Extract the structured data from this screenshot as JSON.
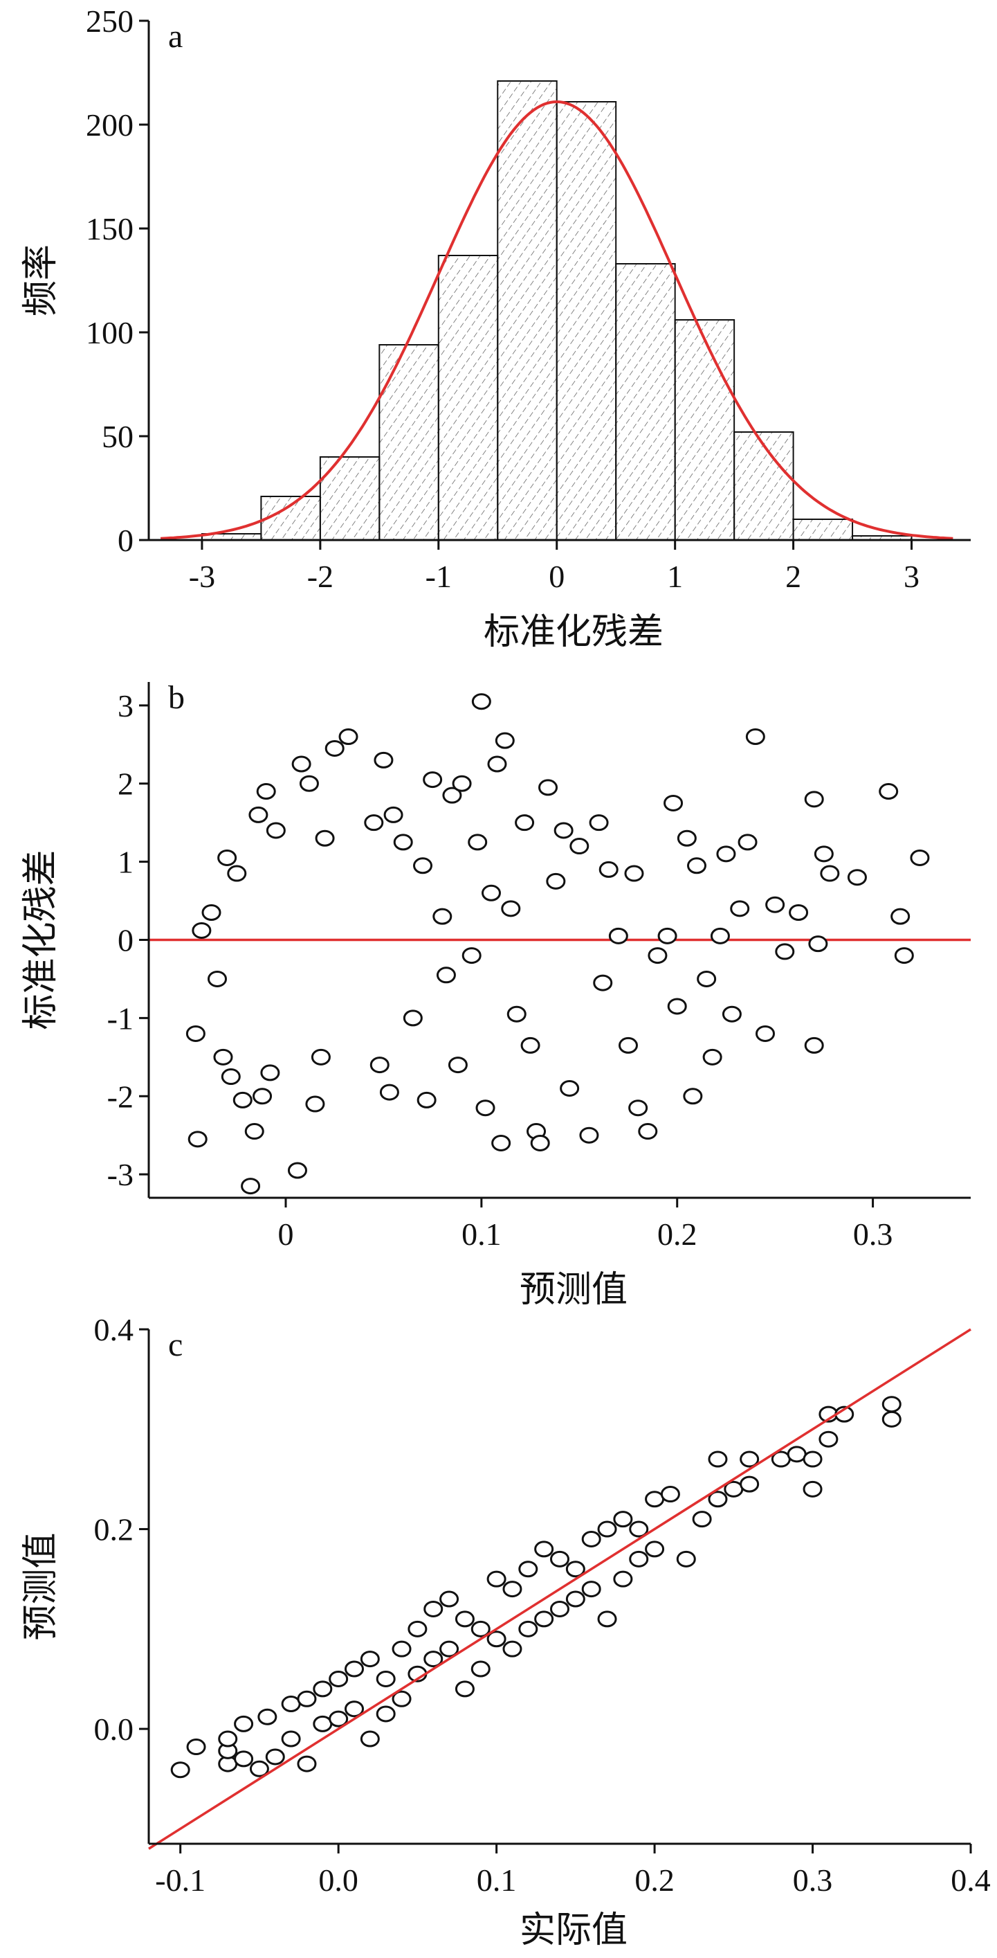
{
  "chart_data": [
    {
      "panel": "a",
      "type": "bar",
      "xlabel": "标准化残差",
      "ylabel": "频率",
      "xlim": [
        -3.45,
        3.5
      ],
      "ylim": [
        0,
        250
      ],
      "xticks": [
        -3,
        -2,
        -1,
        0,
        1,
        2,
        3
      ],
      "yticks": [
        0,
        50,
        100,
        150,
        200,
        250
      ],
      "bin_width": 0.5,
      "bins": [
        {
          "x0": -3.0,
          "count": 3
        },
        {
          "x0": -2.5,
          "count": 21
        },
        {
          "x0": -2.0,
          "count": 40
        },
        {
          "x0": -1.5,
          "count": 94
        },
        {
          "x0": -1.0,
          "count": 137
        },
        {
          "x0": -0.5,
          "count": 221
        },
        {
          "x0": 0.0,
          "count": 211
        },
        {
          "x0": 0.5,
          "count": 133
        },
        {
          "x0": 1.0,
          "count": 106
        },
        {
          "x0": 1.5,
          "count": 52
        },
        {
          "x0": 2.0,
          "count": 10
        },
        {
          "x0": 2.5,
          "count": 2
        }
      ],
      "normal_curve": {
        "mean": 0,
        "sd": 1,
        "peak": 211,
        "color": "#e03030"
      },
      "bar_pattern": "diagonal-hatch"
    },
    {
      "panel": "b",
      "type": "scatter",
      "xlabel": "预测值",
      "ylabel": "标准化残差",
      "xlim": [
        -0.07,
        0.35
      ],
      "ylim": [
        -3.3,
        3.3
      ],
      "xticks": [
        0.0,
        0.1,
        0.2,
        0.3
      ],
      "yticks": [
        -3,
        -2,
        -1,
        0,
        1,
        2,
        3
      ],
      "reference_line": {
        "y": 0,
        "color": "#e03030"
      },
      "points": [
        [
          -0.045,
          -2.55
        ],
        [
          -0.046,
          -1.2
        ],
        [
          -0.043,
          0.12
        ],
        [
          -0.038,
          0.35
        ],
        [
          -0.035,
          -0.5
        ],
        [
          -0.032,
          -1.5
        ],
        [
          -0.03,
          1.05
        ],
        [
          -0.028,
          -1.75
        ],
        [
          -0.025,
          0.85
        ],
        [
          -0.022,
          -2.05
        ],
        [
          -0.018,
          -3.15
        ],
        [
          -0.016,
          -2.45
        ],
        [
          -0.014,
          1.6
        ],
        [
          -0.012,
          -2.0
        ],
        [
          -0.01,
          1.9
        ],
        [
          -0.008,
          -1.7
        ],
        [
          -0.005,
          1.4
        ],
        [
          0.006,
          -2.95
        ],
        [
          0.008,
          2.25
        ],
        [
          0.012,
          2.0
        ],
        [
          0.015,
          -2.1
        ],
        [
          0.018,
          -1.5
        ],
        [
          0.02,
          1.3
        ],
        [
          0.025,
          2.45
        ],
        [
          0.032,
          2.6
        ],
        [
          0.045,
          1.5
        ],
        [
          0.048,
          -1.6
        ],
        [
          0.05,
          2.3
        ],
        [
          0.053,
          -1.95
        ],
        [
          0.055,
          1.6
        ],
        [
          0.06,
          1.25
        ],
        [
          0.065,
          -1.0
        ],
        [
          0.07,
          0.95
        ],
        [
          0.072,
          -2.05
        ],
        [
          0.075,
          2.05
        ],
        [
          0.08,
          0.3
        ],
        [
          0.082,
          -0.45
        ],
        [
          0.085,
          1.85
        ],
        [
          0.088,
          -1.6
        ],
        [
          0.09,
          2.0
        ],
        [
          0.095,
          -0.2
        ],
        [
          0.098,
          1.25
        ],
        [
          0.1,
          3.05
        ],
        [
          0.102,
          -2.15
        ],
        [
          0.105,
          0.6
        ],
        [
          0.108,
          2.25
        ],
        [
          0.11,
          -2.6
        ],
        [
          0.112,
          2.55
        ],
        [
          0.115,
          0.4
        ],
        [
          0.118,
          -0.95
        ],
        [
          0.122,
          1.5
        ],
        [
          0.125,
          -1.35
        ],
        [
          0.128,
          -2.45
        ],
        [
          0.13,
          -2.6
        ],
        [
          0.134,
          1.95
        ],
        [
          0.138,
          0.75
        ],
        [
          0.142,
          1.4
        ],
        [
          0.145,
          -1.9
        ],
        [
          0.15,
          1.2
        ],
        [
          0.155,
          -2.5
        ],
        [
          0.16,
          1.5
        ],
        [
          0.162,
          -0.55
        ],
        [
          0.165,
          0.9
        ],
        [
          0.17,
          0.05
        ],
        [
          0.175,
          -1.35
        ],
        [
          0.178,
          0.85
        ],
        [
          0.18,
          -2.15
        ],
        [
          0.185,
          -2.45
        ],
        [
          0.19,
          -0.2
        ],
        [
          0.195,
          0.05
        ],
        [
          0.198,
          1.75
        ],
        [
          0.2,
          -0.85
        ],
        [
          0.205,
          1.3
        ],
        [
          0.208,
          -2.0
        ],
        [
          0.21,
          0.95
        ],
        [
          0.215,
          -0.5
        ],
        [
          0.218,
          -1.5
        ],
        [
          0.222,
          0.05
        ],
        [
          0.225,
          1.1
        ],
        [
          0.228,
          -0.95
        ],
        [
          0.232,
          0.4
        ],
        [
          0.236,
          1.25
        ],
        [
          0.24,
          2.6
        ],
        [
          0.245,
          -1.2
        ],
        [
          0.25,
          0.45
        ],
        [
          0.255,
          -0.15
        ],
        [
          0.262,
          0.35
        ],
        [
          0.27,
          1.8
        ],
        [
          0.272,
          -0.05
        ],
        [
          0.275,
          1.1
        ],
        [
          0.278,
          0.85
        ],
        [
          0.27,
          -1.35
        ],
        [
          0.292,
          0.8
        ],
        [
          0.308,
          1.9
        ],
        [
          0.314,
          0.3
        ],
        [
          0.316,
          -0.2
        ],
        [
          0.324,
          1.05
        ]
      ]
    },
    {
      "panel": "c",
      "type": "scatter",
      "xlabel": "实际值",
      "ylabel": "预测值",
      "xlim": [
        -0.12,
        0.4
      ],
      "ylim": [
        -0.115,
        0.4
      ],
      "xticks": [
        -0.1,
        0.0,
        0.1,
        0.2,
        0.3,
        0.4
      ],
      "yticks": [
        0.0,
        0.2,
        0.4
      ],
      "reference_line": {
        "x": [
          -0.12,
          0.4
        ],
        "y": [
          -0.12,
          0.4
        ],
        "color": "#e03030"
      },
      "points": [
        [
          -0.1,
          -0.041
        ],
        [
          -0.09,
          -0.018
        ],
        [
          -0.07,
          -0.035
        ],
        [
          -0.07,
          -0.022
        ],
        [
          -0.07,
          -0.01
        ],
        [
          -0.06,
          0.005
        ],
        [
          -0.06,
          -0.03
        ],
        [
          -0.05,
          -0.04
        ],
        [
          -0.045,
          0.012
        ],
        [
          -0.04,
          -0.028
        ],
        [
          -0.03,
          0.025
        ],
        [
          -0.03,
          -0.01
        ],
        [
          -0.02,
          0.03
        ],
        [
          -0.02,
          -0.035
        ],
        [
          -0.01,
          0.04
        ],
        [
          -0.01,
          0.005
        ],
        [
          0.0,
          0.05
        ],
        [
          0.0,
          0.01
        ],
        [
          0.01,
          0.06
        ],
        [
          0.01,
          0.02
        ],
        [
          0.02,
          0.07
        ],
        [
          0.02,
          -0.01
        ],
        [
          0.03,
          0.05
        ],
        [
          0.03,
          0.015
        ],
        [
          0.04,
          0.08
        ],
        [
          0.04,
          0.03
        ],
        [
          0.05,
          0.1
        ],
        [
          0.05,
          0.055
        ],
        [
          0.06,
          0.12
        ],
        [
          0.06,
          0.07
        ],
        [
          0.07,
          0.13
        ],
        [
          0.07,
          0.08
        ],
        [
          0.08,
          0.11
        ],
        [
          0.08,
          0.04
        ],
        [
          0.09,
          0.1
        ],
        [
          0.09,
          0.06
        ],
        [
          0.1,
          0.15
        ],
        [
          0.1,
          0.09
        ],
        [
          0.11,
          0.14
        ],
        [
          0.11,
          0.08
        ],
        [
          0.12,
          0.16
        ],
        [
          0.12,
          0.1
        ],
        [
          0.13,
          0.18
        ],
        [
          0.13,
          0.11
        ],
        [
          0.14,
          0.17
        ],
        [
          0.14,
          0.12
        ],
        [
          0.15,
          0.16
        ],
        [
          0.15,
          0.13
        ],
        [
          0.16,
          0.19
        ],
        [
          0.16,
          0.14
        ],
        [
          0.17,
          0.2
        ],
        [
          0.17,
          0.11
        ],
        [
          0.18,
          0.21
        ],
        [
          0.18,
          0.15
        ],
        [
          0.19,
          0.2
        ],
        [
          0.19,
          0.17
        ],
        [
          0.2,
          0.23
        ],
        [
          0.2,
          0.18
        ],
        [
          0.21,
          0.235
        ],
        [
          0.22,
          0.17
        ],
        [
          0.23,
          0.21
        ],
        [
          0.24,
          0.27
        ],
        [
          0.24,
          0.23
        ],
        [
          0.25,
          0.24
        ],
        [
          0.26,
          0.27
        ],
        [
          0.26,
          0.245
        ],
        [
          0.28,
          0.27
        ],
        [
          0.29,
          0.275
        ],
        [
          0.3,
          0.27
        ],
        [
          0.3,
          0.24
        ],
        [
          0.31,
          0.29
        ],
        [
          0.31,
          0.315
        ],
        [
          0.32,
          0.315
        ],
        [
          0.35,
          0.325
        ],
        [
          0.35,
          0.31
        ]
      ]
    }
  ]
}
